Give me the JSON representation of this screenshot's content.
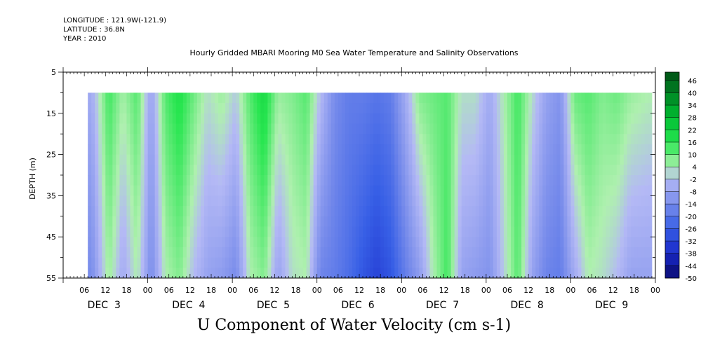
{
  "header": {
    "longitude": "LONGITUDE : 121.9W(-121.9)",
    "latitude": "LATITUDE : 36.8N",
    "year": "YEAR : 2010"
  },
  "chart_data": {
    "type": "heatmap",
    "title": "Hourly Gridded MBARI Mooring M0 Sea Water Temperature and Salinity Observations",
    "xlabel": "U Component of Water Velocity (cm s-1)",
    "ylabel": "DEPTH (m)",
    "x_range_hours": [
      0,
      168
    ],
    "x_hour_ticks": [
      "06",
      "12",
      "18",
      "00",
      "06",
      "12",
      "18",
      "00",
      "06",
      "12",
      "18",
      "00",
      "06",
      "12",
      "18",
      "00",
      "06",
      "12",
      "18",
      "00",
      "06",
      "12",
      "18",
      "00",
      "06",
      "12",
      "18",
      "00"
    ],
    "day_labels": [
      "DEC  3",
      "DEC  4",
      "DEC  5",
      "DEC  6",
      "DEC  7",
      "DEC  8",
      "DEC  9"
    ],
    "y_range": [
      5,
      55
    ],
    "y_inverted": true,
    "y_ticks": [
      5,
      15,
      25,
      35,
      45,
      55
    ],
    "data_depth_range": [
      10,
      55
    ],
    "data_time_range_hours": [
      7,
      167
    ],
    "colorbar": {
      "min": -50,
      "max": 50,
      "step": 6,
      "labels": [
        "46",
        "40",
        "34",
        "28",
        "22",
        "16",
        "10",
        "4",
        "-2",
        "-8",
        "-14",
        "-20",
        "-26",
        "-32",
        "-38",
        "-44",
        "-50"
      ]
    },
    "columns": [
      {
        "t": 8,
        "top": -6,
        "bot": -14
      },
      {
        "t": 13,
        "top": 14,
        "bot": 6
      },
      {
        "t": 17,
        "top": 5,
        "bot": -6
      },
      {
        "t": 21,
        "top": 12,
        "bot": 4
      },
      {
        "t": 25,
        "top": -8,
        "bot": -14
      },
      {
        "t": 29,
        "top": 12,
        "bot": 4
      },
      {
        "t": 33,
        "top": 18,
        "bot": 8
      },
      {
        "t": 37,
        "top": 10,
        "bot": -2
      },
      {
        "t": 41,
        "top": 2,
        "bot": -8
      },
      {
        "t": 45,
        "top": 6,
        "bot": -10
      },
      {
        "t": 49,
        "top": 0,
        "bot": -14
      },
      {
        "t": 53,
        "top": 12,
        "bot": 4
      },
      {
        "t": 57,
        "top": 20,
        "bot": 8
      },
      {
        "t": 61,
        "top": 6,
        "bot": -8
      },
      {
        "t": 65,
        "top": 8,
        "bot": 2
      },
      {
        "t": 69,
        "top": 12,
        "bot": 4
      },
      {
        "t": 73,
        "top": -2,
        "bot": -16
      },
      {
        "t": 77,
        "top": -14,
        "bot": -18
      },
      {
        "t": 81,
        "top": -18,
        "bot": -22
      },
      {
        "t": 85,
        "top": -18,
        "bot": -28
      },
      {
        "t": 89,
        "top": -20,
        "bot": -32
      },
      {
        "t": 93,
        "top": -18,
        "bot": -28
      },
      {
        "t": 97,
        "top": -6,
        "bot": -18
      },
      {
        "t": 101,
        "top": 8,
        "bot": -10
      },
      {
        "t": 105,
        "top": 10,
        "bot": 4
      },
      {
        "t": 109,
        "top": 12,
        "bot": 14
      },
      {
        "t": 113,
        "top": 2,
        "bot": -8
      },
      {
        "t": 117,
        "top": 2,
        "bot": -10
      },
      {
        "t": 121,
        "top": -6,
        "bot": -12
      },
      {
        "t": 125,
        "top": 4,
        "bot": 0
      },
      {
        "t": 129,
        "top": 14,
        "bot": 12
      },
      {
        "t": 133,
        "top": 2,
        "bot": -8
      },
      {
        "t": 137,
        "top": -8,
        "bot": -16
      },
      {
        "t": 141,
        "top": -12,
        "bot": -18
      },
      {
        "t": 145,
        "top": 10,
        "bot": -6
      },
      {
        "t": 149,
        "top": 12,
        "bot": 4
      },
      {
        "t": 153,
        "top": 8,
        "bot": 2
      },
      {
        "t": 157,
        "top": 10,
        "bot": -2
      },
      {
        "t": 161,
        "top": 6,
        "bot": -8
      },
      {
        "t": 166,
        "top": 4,
        "bot": -8
      }
    ]
  }
}
